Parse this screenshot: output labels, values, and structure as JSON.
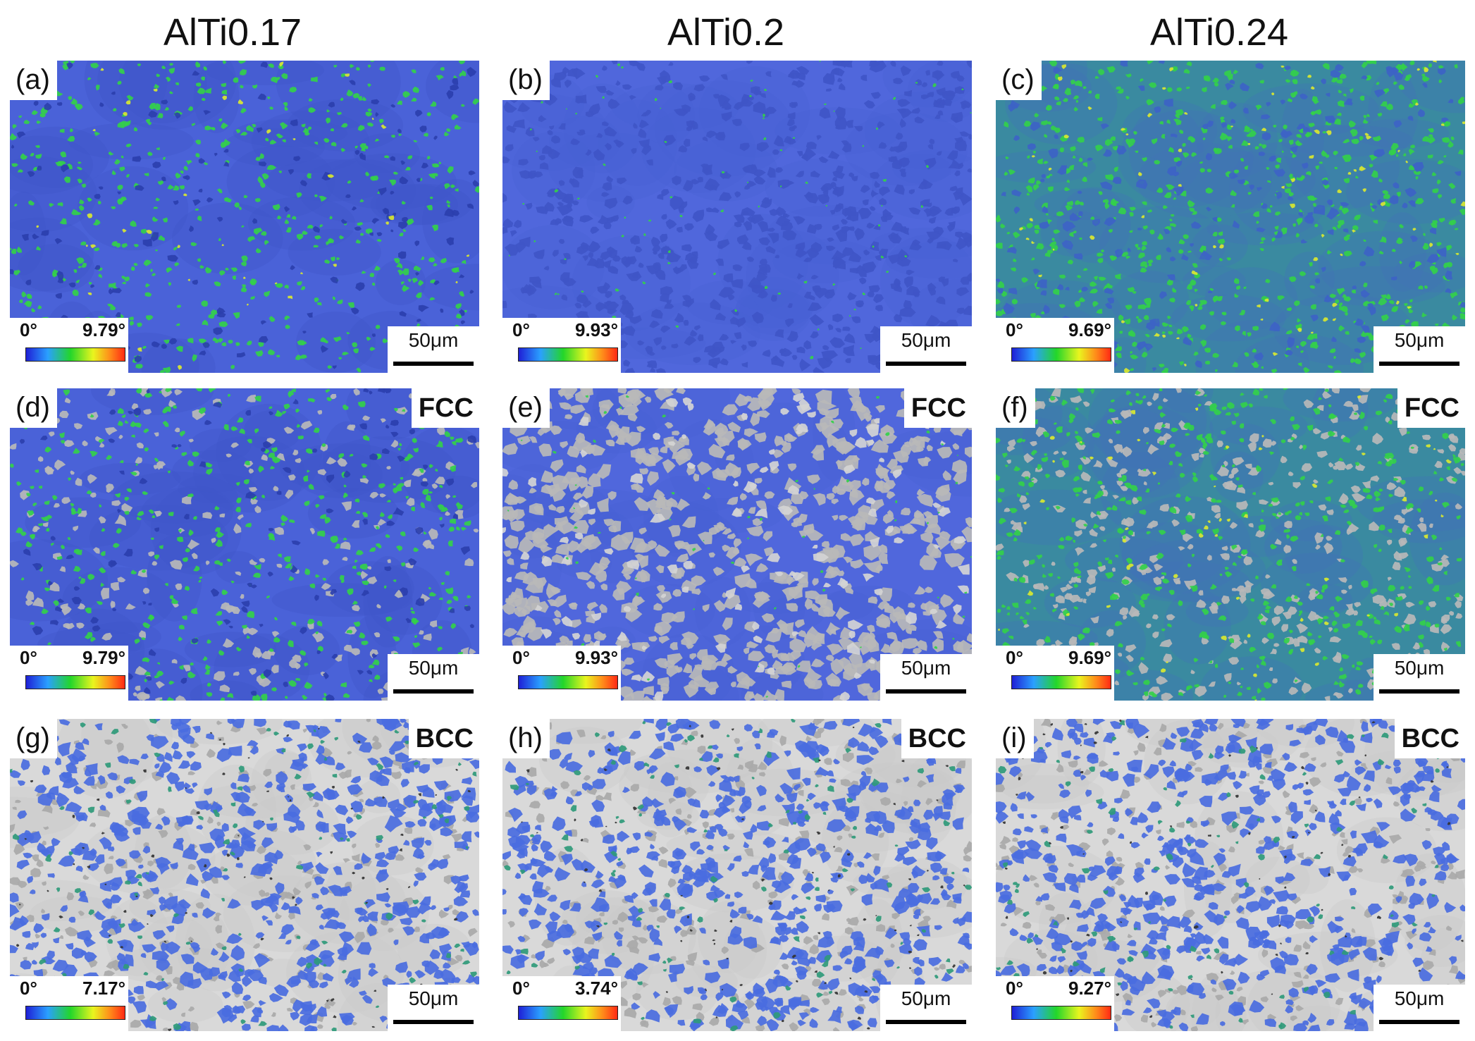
{
  "columns": [
    "AlTi0.17",
    "AlTi0.2",
    "AlTi0.24"
  ],
  "panels": [
    {
      "letter": "(a)",
      "phase": "",
      "min": "0°",
      "max": "9.79°",
      "scale": "50μm",
      "style": "green"
    },
    {
      "letter": "(b)",
      "phase": "",
      "min": "0°",
      "max": "9.93°",
      "scale": "50μm",
      "style": "blue"
    },
    {
      "letter": "(c)",
      "phase": "",
      "min": "0°",
      "max": "9.69°",
      "scale": "50μm",
      "style": "teal"
    },
    {
      "letter": "(d)",
      "phase": "FCC",
      "min": "0°",
      "max": "9.79°",
      "scale": "50μm",
      "style": "fcc-green"
    },
    {
      "letter": "(e)",
      "phase": "FCC",
      "min": "0°",
      "max": "9.93°",
      "scale": "50μm",
      "style": "fcc-blue"
    },
    {
      "letter": "(f)",
      "phase": "FCC",
      "min": "0°",
      "max": "9.69°",
      "scale": "50μm",
      "style": "fcc-teal"
    },
    {
      "letter": "(g)",
      "phase": "BCC",
      "min": "0°",
      "max": "7.17°",
      "scale": "50μm",
      "style": "bcc"
    },
    {
      "letter": "(h)",
      "phase": "BCC",
      "min": "0°",
      "max": "3.74°",
      "scale": "50μm",
      "style": "bcc"
    },
    {
      "letter": "(i)",
      "phase": "BCC",
      "min": "0°",
      "max": "9.27°",
      "scale": "50μm",
      "style": "bcc"
    }
  ],
  "colors": {
    "matrix_blue": "#4a62d8",
    "matrix_teal": "#3a8aa0",
    "grain_green": "#33d04a",
    "grain_yellow": "#d9e830",
    "fcc_gray": "#b8b8b8",
    "bcc_bg": "#d9d9d9",
    "bcc_grain": "#4a6de0"
  }
}
